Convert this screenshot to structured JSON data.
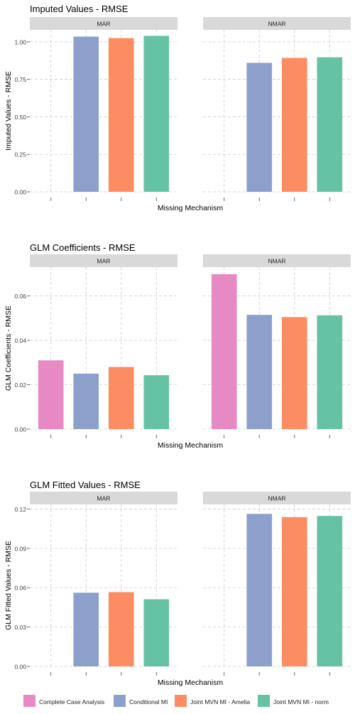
{
  "legend": {
    "placement": "bottom",
    "items": [
      {
        "label": "Complete Case Analysis",
        "color": "#e78ac3"
      },
      {
        "label": "Conditional MI",
        "color": "#8da0cb"
      },
      {
        "label": "Joint MVN MI - Amelia",
        "color": "#fc8d62"
      },
      {
        "label": "Joint MVN MI - norm",
        "color": "#66c2a5"
      }
    ]
  },
  "chart_data": [
    {
      "type": "bar",
      "title": "Imputed Values - RMSE",
      "xlabel": "Missing Mechanism",
      "ylabel": "Imputed Values - RMSE",
      "ylim": [
        0,
        1.08
      ],
      "yticks": [
        0,
        0.25,
        0.5,
        0.75,
        1.0
      ],
      "ytick_labels": [
        "0.00",
        "0.25",
        "0.50",
        "0.75",
        "1.00"
      ],
      "grid": true,
      "facets": [
        {
          "label": "MAR",
          "values": [
            null,
            1.035,
            1.025,
            1.04
          ]
        },
        {
          "label": "NMAR",
          "values": [
            null,
            0.86,
            0.893,
            0.897
          ]
        }
      ]
    },
    {
      "type": "bar",
      "title": "GLM Coefficients - RMSE",
      "xlabel": "Missing Mechanism",
      "ylabel": "GLM Coefficients - RMSE",
      "ylim": [
        0,
        0.073
      ],
      "yticks": [
        0,
        0.02,
        0.04,
        0.06
      ],
      "ytick_labels": [
        "0.00",
        "0.02",
        "0.04",
        "0.06"
      ],
      "grid": true,
      "facets": [
        {
          "label": "MAR",
          "values": [
            0.031,
            0.025,
            0.028,
            0.0243
          ]
        },
        {
          "label": "NMAR",
          "values": [
            0.0698,
            0.0515,
            0.0505,
            0.0513
          ]
        }
      ]
    },
    {
      "type": "bar",
      "title": "GLM Fitted Values - RMSE",
      "xlabel": "Missing Mechanism",
      "ylabel": "GLM Fitted Values - RMSE",
      "ylim": [
        0,
        0.1235
      ],
      "yticks": [
        0,
        0.03,
        0.06,
        0.09,
        0.12
      ],
      "ytick_labels": [
        "0.00",
        "0.03",
        "0.06",
        "0.09",
        "0.12"
      ],
      "grid": true,
      "facets": [
        {
          "label": "MAR",
          "values": [
            null,
            0.0562,
            0.0566,
            0.0512
          ]
        },
        {
          "label": "NMAR",
          "values": [
            null,
            0.1163,
            0.1138,
            0.1147
          ]
        }
      ]
    }
  ]
}
